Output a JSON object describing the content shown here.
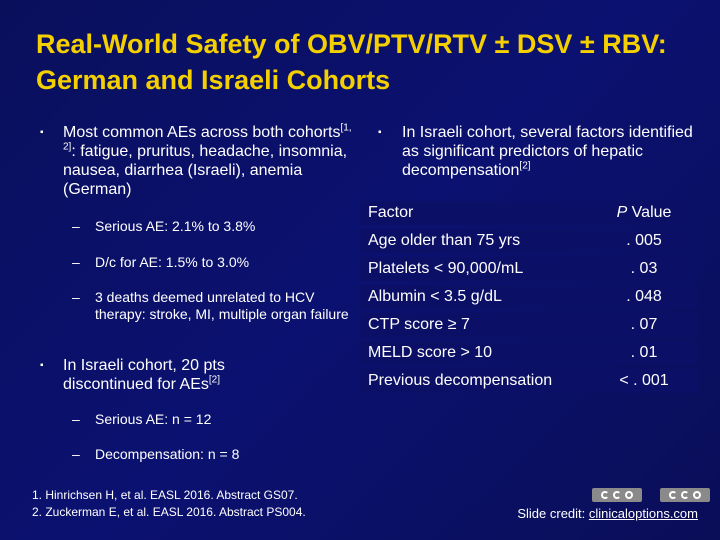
{
  "title": "Real-World Safety of OBV/PTV/RTV ± DSV ± RBV: German and Israeli Cohorts",
  "left": {
    "bullet1": {
      "text_a": "Most common AEs across both cohorts",
      "ref": "[1, 2]",
      "text_b": ": fatigue, pruritus, headache, insomnia, nausea, diarrhea (Israeli), anemia (German)"
    },
    "sub1": [
      "Serious AE: 2.1% to 3.8%",
      "D/c for AE: 1.5% to 3.0%",
      "3 deaths deemed unrelated to HCV therapy: stroke, MI, multiple organ failure"
    ],
    "bullet2": {
      "text": "In Israeli cohort, 20 pts discontinued for AEs",
      "ref": "[2]"
    },
    "sub2": [
      "Serious AE: n = 12",
      "Decompensation: n = 8"
    ]
  },
  "right": {
    "bullet": {
      "text": "In Israeli cohort, several factors identified as significant predictors of hepatic decompensation",
      "ref": "[2]"
    },
    "table": {
      "header_factor": "Factor",
      "header_p_italic": "P",
      "header_p_rest": " Value",
      "rows": [
        {
          "factor": "Age older than 75 yrs",
          "p": ". 005"
        },
        {
          "factor": "Platelets < 90,000/mL",
          "p": ". 03"
        },
        {
          "factor": "Albumin < 3.5 g/dL",
          "p": ". 048"
        },
        {
          "factor": "CTP score ≥ 7",
          "p": ". 07"
        },
        {
          "factor": "MELD score > 10",
          "p": ". 01"
        },
        {
          "factor": "Previous decompensation",
          "p": "< . 001"
        }
      ]
    }
  },
  "footnotes": [
    "1. Hinrichsen H, et al. EASL 2016. Abstract GS07.",
    "2. Zuckerman E, et al. EASL 2016. Abstract PS004."
  ],
  "credit": {
    "label": "Slide credit: ",
    "link": "clinicaloptions.com"
  },
  "colors": {
    "title": "#f5d000",
    "background": "#0a0f5c",
    "table_cell": "#0b1066"
  },
  "icons": {
    "bullet": "square-bullet-icon",
    "logo": "cco-logo-icon"
  }
}
